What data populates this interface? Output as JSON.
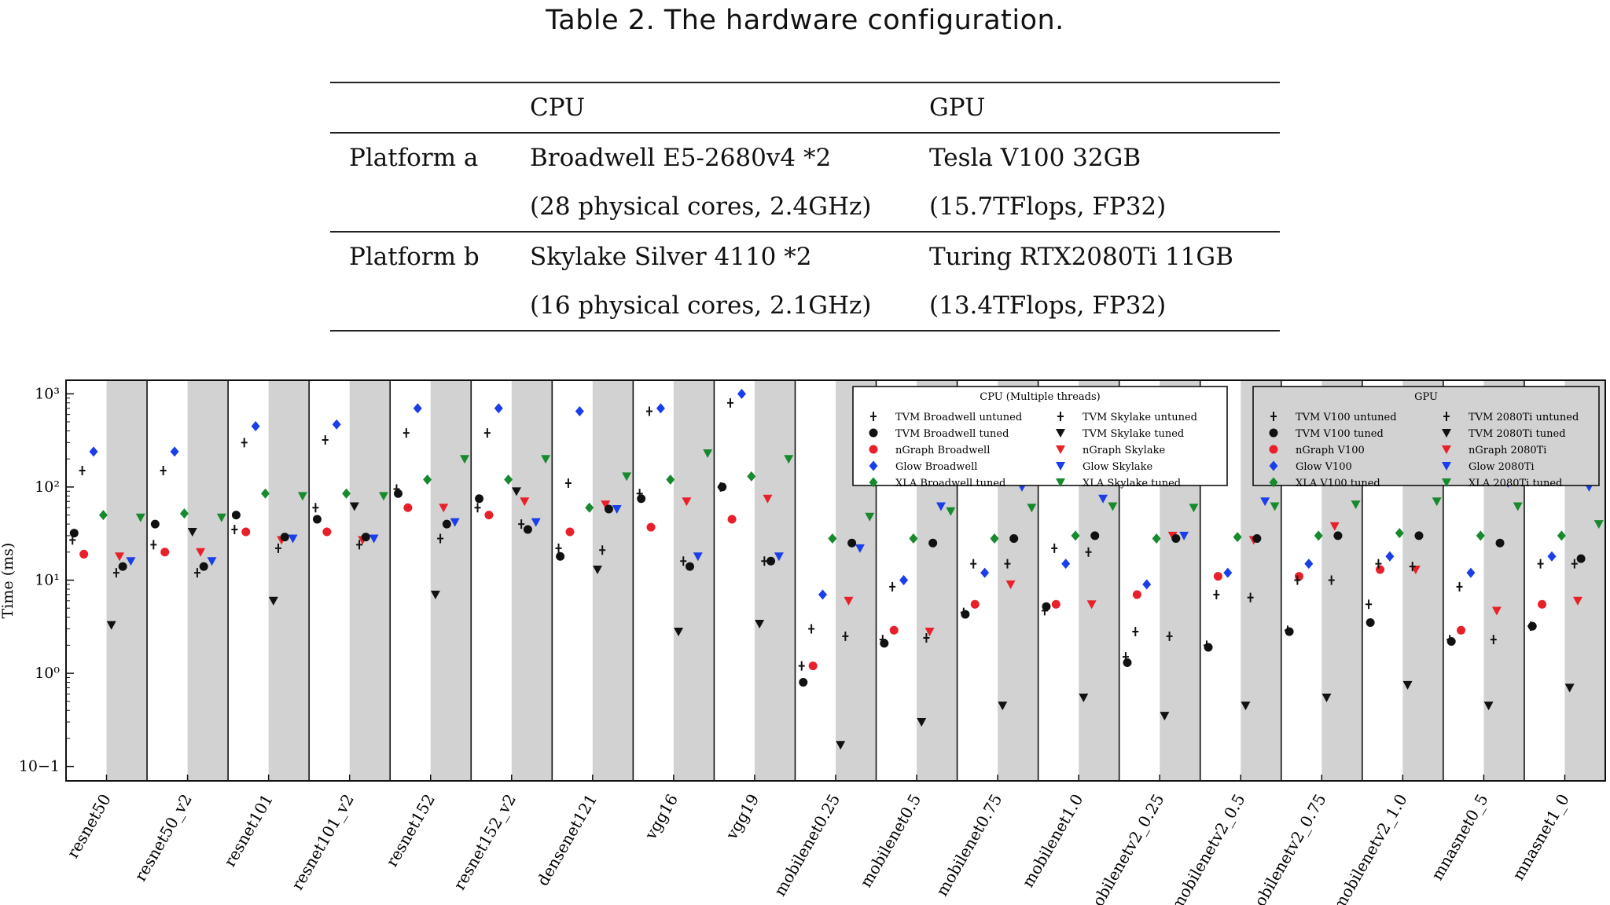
{
  "caption": "Table 2.  The hardware configuration.",
  "table": {
    "headers": [
      "",
      "CPU",
      "GPU"
    ],
    "rows": [
      [
        "Platform a",
        "Broadwell E5-2680v4 *2",
        "Tesla V100 32GB"
      ],
      [
        "",
        "(28 physical cores, 2.4GHz)",
        "(15.7TFlops, FP32)"
      ],
      [
        "Platform b",
        "Skylake Silver 4110 *2",
        "Turing RTX2080Ti 11GB"
      ],
      [
        "",
        "(16 physical cores, 2.1GHz)",
        "(13.4TFlops, FP32)"
      ]
    ]
  },
  "chart_data": {
    "type": "scatter",
    "ylabel": "Time (ms)",
    "yscale": "log",
    "ylim": [
      0.07,
      1400
    ],
    "yticks": [
      "10−1",
      "10⁰",
      "10¹",
      "10²",
      "10³"
    ],
    "categories": [
      "resnet50",
      "resnet50_v2",
      "resnet101",
      "resnet101_v2",
      "resnet152",
      "resnet152_v2",
      "densenet121",
      "vgg16",
      "vgg19",
      "mobilenet0.25",
      "mobilenet0.5",
      "mobilenet0.75",
      "mobilenet1.0",
      "mobilenetv2_0.25",
      "mobilenetv2_0.5",
      "mobilenetv2_0.75",
      "mobilenetv2_1.0",
      "mnasnet0_5",
      "mnasnet1_0"
    ],
    "colors": {
      "tvm": "#111111",
      "ngraph": "#e8202a",
      "glow": "#1a3ee8",
      "xla": "#178a2e",
      "shade": "#d2d2d2",
      "legend_gpu_bg": "#d2d2d2"
    },
    "legend_cpu": {
      "title": "CPU (Multiple threads)",
      "entries": [
        "TVM Broadwell untuned",
        "TVM Broadwell tuned",
        "nGraph Broadwell",
        "Glow Broadwell",
        "XLA Broadwell tuned",
        "TVM Skylake untuned",
        "TVM Skylake tuned",
        "nGraph Skylake",
        "Glow Skylake",
        "XLA Skylake tuned"
      ]
    },
    "legend_gpu": {
      "title": "GPU",
      "entries": [
        "TVM V100 untuned",
        "TVM V100 tuned",
        "nGraph V100",
        "Glow V100",
        "XLA V100 tuned",
        "TVM 2080Ti untuned",
        "TVM 2080Ti tuned",
        "nGraph 2080Ti",
        "Glow 2080Ti",
        "XLA 2080Ti tuned"
      ]
    },
    "series": [
      {
        "name": "TVM Broadwell untuned",
        "values": [
          27,
          24,
          35,
          60,
          95,
          60,
          22,
          85,
          100,
          1.2,
          2.3,
          4.5,
          4.7,
          1.5,
          2.0,
          2.9,
          5.5,
          2.3,
          3.2
        ]
      },
      {
        "name": "TVM Broadwell tuned",
        "values": [
          32,
          40,
          50,
          45,
          85,
          75,
          18,
          75,
          100,
          0.8,
          2.1,
          4.3,
          5.2,
          1.3,
          1.9,
          2.8,
          3.5,
          2.2,
          3.2
        ]
      },
      {
        "name": "nGraph Broadwell",
        "values": [
          19,
          20,
          33,
          33,
          60,
          50,
          33,
          37,
          45,
          1.2,
          2.9,
          5.5,
          5.5,
          7.0,
          11,
          11,
          13,
          2.9,
          5.5
        ]
      },
      {
        "name": "Glow Broadwell",
        "values": [
          240,
          240,
          450,
          470,
          700,
          700,
          650,
          700,
          1000,
          7,
          10,
          12,
          15,
          9,
          12,
          15,
          18,
          12,
          18
        ]
      },
      {
        "name": "XLA Broadwell tuned",
        "values": [
          50,
          52,
          85,
          85,
          120,
          120,
          60,
          120,
          130,
          28,
          28,
          28,
          30,
          28,
          29,
          30,
          32,
          30,
          30
        ]
      },
      {
        "name": "TVM Skylake untuned",
        "values": [
          150,
          150,
          300,
          320,
          380,
          380,
          110,
          650,
          800,
          3.0,
          8.5,
          15,
          22,
          2.8,
          7,
          10,
          15,
          8.5,
          15
        ]
      },
      {
        "name": "TVM Skylake tuned",
        "values": [
          3.3,
          33,
          6,
          62,
          7,
          90,
          13,
          2.8,
          3.4,
          0.17,
          0.3,
          0.45,
          0.55,
          0.35,
          0.45,
          0.55,
          0.75,
          0.45,
          0.7
        ]
      },
      {
        "name": "nGraph Skylake",
        "values": [
          18,
          20,
          27,
          27,
          60,
          70,
          65,
          70,
          75,
          6,
          2.8,
          9,
          5.5,
          30,
          27,
          38,
          13,
          4.7,
          6
        ]
      },
      {
        "name": "Glow Skylake",
        "values": [
          16,
          16,
          28,
          28,
          42,
          42,
          58,
          18,
          18,
          22,
          62,
          100,
          75,
          30,
          70,
          120,
          130,
          110,
          100
        ]
      },
      {
        "name": "XLA Skylake tuned",
        "values": [
          47,
          47,
          80,
          80,
          200,
          200,
          130,
          230,
          200,
          48,
          55,
          60,
          62,
          60,
          62,
          65,
          70,
          62,
          40
        ]
      },
      {
        "name": "TVM V100 untuned",
        "values": [
          12,
          12,
          22,
          24,
          28,
          40,
          21,
          16,
          16,
          2.5,
          2.4,
          15,
          20,
          2.5,
          6.5,
          10,
          14,
          2.3,
          15
        ]
      },
      {
        "name": "TVM V100 tuned",
        "values": [
          14,
          14,
          29,
          29,
          40,
          35,
          58,
          14,
          16,
          25,
          25,
          28,
          30,
          28,
          28,
          30,
          30,
          25,
          17
        ]
      }
    ]
  }
}
